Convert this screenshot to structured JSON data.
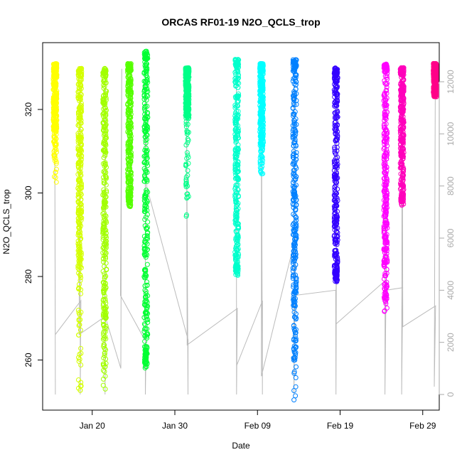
{
  "chart_data": {
    "type": "scatter",
    "title": "ORCAS RF01-19 N2O_QCLS_trop",
    "xlabel": "Date",
    "ylabel": "N2O_QCLS_trop",
    "x_axis": {
      "type": "date",
      "range": [
        "2016-01-14",
        "2016-03-02"
      ],
      "ticks": [
        {
          "date": "2016-01-20",
          "label": "Jan 20"
        },
        {
          "date": "2016-01-30",
          "label": "Jan 30"
        },
        {
          "date": "2016-02-09",
          "label": "Feb 09"
        },
        {
          "date": "2016-02-19",
          "label": "Feb 19"
        },
        {
          "date": "2016-02-29",
          "label": "Feb 29"
        }
      ]
    },
    "y_axis_left": {
      "range": [
        248,
        336
      ],
      "ticks": [
        260,
        280,
        300,
        320
      ]
    },
    "y_axis_right": {
      "range": [
        -600,
        13500
      ],
      "ticks": [
        0,
        2000,
        4000,
        6000,
        8000,
        10000,
        12000
      ],
      "tick_color": "#aaaaaa"
    },
    "grid": false,
    "flights": [
      {
        "date": "2016-01-15",
        "color": "#ffff00",
        "n2o_min": 302,
        "n2o_max": 331,
        "core_min": 315,
        "core_max": 331,
        "alt_max": 12000
      },
      {
        "date": "2016-01-18",
        "color": "#d4ff00",
        "n2o_min": 251,
        "n2o_max": 330,
        "core_min": 282,
        "core_max": 330,
        "alt_max": 12000
      },
      {
        "date": "2016-01-21",
        "color": "#a2ff00",
        "n2o_min": 252,
        "n2o_max": 330,
        "core_min": 270,
        "core_max": 330,
        "alt_max": 12000
      },
      {
        "date": "2016-01-24",
        "color": "#55ff00",
        "n2o_min": 296,
        "n2o_max": 331,
        "core_min": 300,
        "core_max": 331,
        "alt_max": 12300
      },
      {
        "date": "2016-01-26",
        "color": "#00ff33",
        "n2o_min": 258,
        "n2o_max": 334,
        "core_min": 262,
        "core_max": 333,
        "alt_max": 12400
      },
      {
        "date": "2016-01-31",
        "color": "#00ff88",
        "n2o_min": 294,
        "n2o_max": 330,
        "core_min": 318,
        "core_max": 330,
        "alt_max": 12000
      },
      {
        "date": "2016-02-06",
        "color": "#00ffcc",
        "n2o_min": 280,
        "n2o_max": 332,
        "core_min": 283,
        "core_max": 332,
        "alt_max": 12100
      },
      {
        "date": "2016-02-09",
        "color": "#00ffff",
        "n2o_min": 304,
        "n2o_max": 331,
        "core_min": 312,
        "core_max": 331,
        "alt_max": 12000
      },
      {
        "date": "2016-02-13",
        "color": "#0080ff",
        "n2o_min": 250,
        "n2o_max": 332,
        "core_min": 270,
        "core_max": 332,
        "alt_max": 12000
      },
      {
        "date": "2016-02-18",
        "color": "#3300ff",
        "n2o_min": 278,
        "n2o_max": 330,
        "core_min": 282,
        "core_max": 330,
        "alt_max": 11900
      },
      {
        "date": "2016-02-24",
        "color": "#ff00ff",
        "n2o_min": 271,
        "n2o_max": 331,
        "core_min": 282,
        "core_max": 331,
        "alt_max": 12000
      },
      {
        "date": "2016-02-26",
        "color": "#ff00bb",
        "n2o_min": 297,
        "n2o_max": 330,
        "core_min": 300,
        "core_max": 330,
        "alt_max": 12000
      },
      {
        "date": "2016-03-01",
        "color": "#ff0088",
        "n2o_min": 323,
        "n2o_max": 331,
        "core_min": 324,
        "core_max": 331,
        "alt_max": 12000
      }
    ],
    "altitude_track": {
      "color": "#bbbbbb",
      "points": [
        [
          "2016-01-15",
          0
        ],
        [
          "2016-01-15",
          12000
        ],
        [
          "2016-01-15",
          2300
        ],
        [
          "2016-01-18",
          3600
        ],
        [
          "2016-01-18",
          0
        ],
        [
          "2016-01-18",
          12000
        ],
        [
          "2016-01-18",
          2300
        ],
        [
          "2016-01-21",
          3000
        ],
        [
          "2016-01-21",
          0
        ],
        [
          "2016-01-21",
          12300
        ],
        [
          "2016-01-21",
          3000
        ],
        [
          "2016-01-23",
          1000
        ],
        [
          "2016-01-23",
          12500
        ],
        [
          "2016-01-23",
          3800
        ],
        [
          "2016-01-26",
          2000
        ],
        [
          "2016-01-26",
          0
        ],
        [
          "2016-01-26",
          12700
        ],
        [
          "2016-01-26",
          8000
        ],
        [
          "2016-01-31",
          2100
        ],
        [
          "2016-01-31",
          0
        ],
        [
          "2016-01-31",
          12000
        ],
        [
          "2016-01-31",
          1900
        ],
        [
          "2016-02-06",
          3300
        ],
        [
          "2016-02-06",
          0
        ],
        [
          "2016-02-06",
          12100
        ],
        [
          "2016-02-06",
          1100
        ],
        [
          "2016-02-09",
          3600
        ],
        [
          "2016-02-09",
          0
        ],
        [
          "2016-02-09",
          12000
        ],
        [
          "2016-02-09",
          700
        ],
        [
          "2016-02-13",
          6000
        ],
        [
          "2016-02-13",
          0
        ],
        [
          "2016-02-13",
          12000
        ],
        [
          "2016-02-13",
          3800
        ],
        [
          "2016-02-18",
          4000
        ],
        [
          "2016-02-18",
          0
        ],
        [
          "2016-02-18",
          11900
        ],
        [
          "2016-02-18",
          2700
        ],
        [
          "2016-02-24",
          4400
        ],
        [
          "2016-02-24",
          0
        ],
        [
          "2016-02-24",
          12000
        ],
        [
          "2016-02-24",
          4000
        ],
        [
          "2016-02-26",
          4100
        ],
        [
          "2016-02-26",
          0
        ],
        [
          "2016-02-26",
          12000
        ],
        [
          "2016-02-26",
          2600
        ],
        [
          "2016-03-01",
          3400
        ],
        [
          "2016-03-01",
          300
        ],
        [
          "2016-03-01",
          12600
        ]
      ]
    }
  }
}
